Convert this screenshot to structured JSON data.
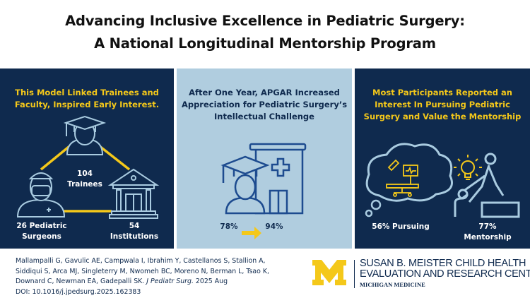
{
  "title": {
    "line1": "Advancing Inclusive Excellence in Pediatric Surgery:",
    "line2": "A National Longitudinal Mentorship Program"
  },
  "panels": [
    {
      "heading": [
        "This Model Linked Trainees and",
        "Faculty, Inspired Early Interest."
      ],
      "labels": {
        "trainees": "104 Trainees",
        "surgeons1": "26 Pediatric",
        "surgeons2": "Surgeons",
        "institutions": "54 Institutions"
      },
      "icons": [
        "graduate-icon",
        "surgeon-icon",
        "institution-icon"
      ]
    },
    {
      "heading": [
        "After One Year, APGAR Increased",
        "Appreciation for Pediatric Surgery’s",
        "Intellectual Challenge"
      ],
      "before": "78%",
      "after": "94%",
      "icons": [
        "graduate-hospital-icon",
        "arrow-right-icon"
      ]
    },
    {
      "heading": [
        "Most Participants Reported an",
        "Interest In Pursuing Pediatric",
        "Surgery and Value the Mentorship"
      ],
      "pursuing": "56% Pursuing",
      "mentorship": "77% Mentorship",
      "icons": [
        "thought-cloud-operating-room-icon",
        "mentor-lightbulb-icon"
      ]
    }
  ],
  "citation": {
    "authors": "Mallampalli G, Gavulic AE, Campwala I, Ibrahim Y, Castellanos S, Stallion A, Siddiqui S, Arca MJ, Singleterry M, Nwomeh BC, Moreno N, Berman L, Tsao K, Downard C, Newman EA, Gadepalli SK.",
    "journal": "J Pediatr Surg.",
    "date": "2025 Aug",
    "doi": "DOI: 10.1016/j.jpedsurg.2025.162383"
  },
  "logo": {
    "mark": "M",
    "line1": "SUSAN B. MEISTER CHILD HEALTH",
    "line2": "EVALUATION AND RESEARCH CENTER",
    "line3": "MICHIGAN MEDICINE"
  },
  "colors": {
    "navy": "#0f2a4e",
    "yellow": "#f4c81a",
    "light_blue": "#b0cddf",
    "icon_stroke": "#a9cbe0"
  }
}
